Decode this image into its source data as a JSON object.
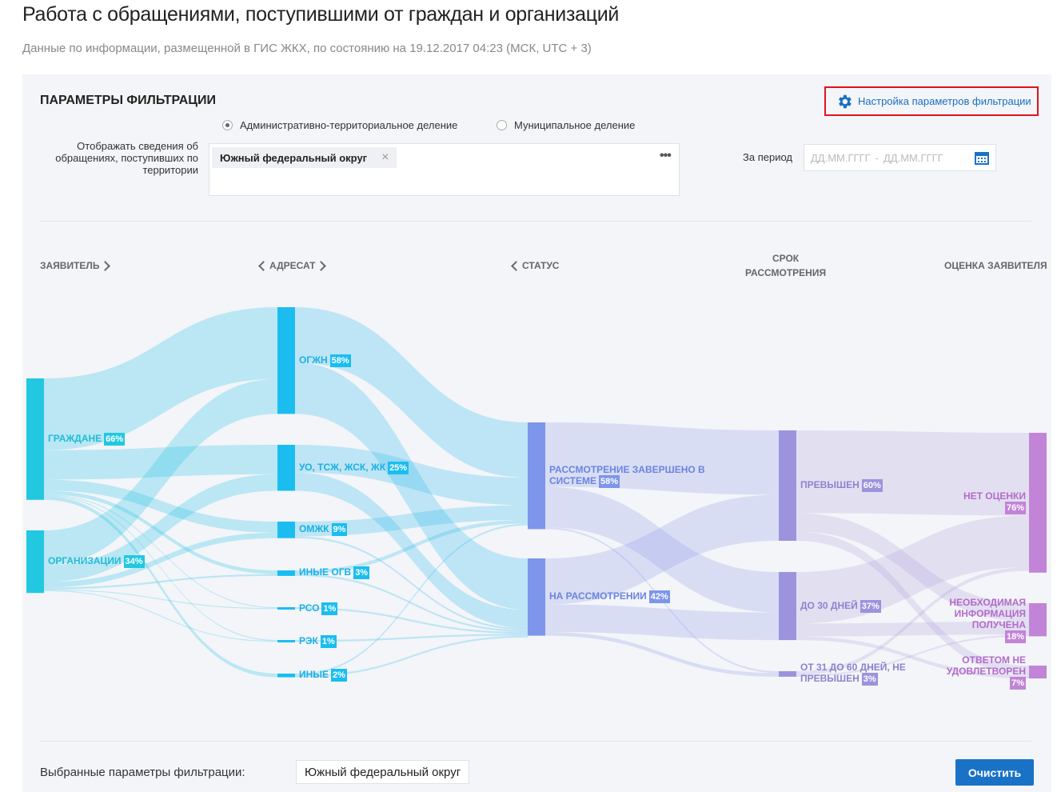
{
  "header": {
    "title": "Работа с обращениями, поступившими от граждан и организаций",
    "subtitle": "Данные по информации, размещенной в ГИС ЖКХ, по состоянию на 19.12.2017 04:23 (МСК, UTC + 3)"
  },
  "filters": {
    "title": "ПАРАМЕТРЫ ФИЛЬТРАЦИИ",
    "settings_link": "Настройка параметров фильтрации",
    "radio_options": [
      "Административно-территориальное деление",
      "Муниципальное деление"
    ],
    "territory_label": "Отображать сведения об обращениях, поступивших по территории",
    "territory_tag": "Южный федеральный округ",
    "period_label": "За период",
    "date_from": "ДД.ММ.ГГГГ",
    "date_separator": "-",
    "date_to": "ДД.ММ.ГГГГ"
  },
  "chart_data": {
    "type": "sankey",
    "columns": [
      {
        "title": "ЗАЯВИТЕЛЬ",
        "color": "#22c8e0",
        "text_color": "#1fbcd8",
        "link_color": "rgba(40,195,230,0.28)",
        "nodes": [
          {
            "label": "ГРАЖДАНЕ",
            "value": 66,
            "value_label": "66%"
          },
          {
            "label": "ОРГАНИЗАЦИИ",
            "value": 34,
            "value_label": "34%"
          }
        ]
      },
      {
        "title": "АДРЕСАТ",
        "color": "#1bbdf0",
        "text_color": "#18b0e6",
        "link_color": "rgba(40,185,235,0.26)",
        "nodes": [
          {
            "label": "ОГЖН",
            "value": 58,
            "value_label": "58%"
          },
          {
            "label": "УО, ТСЖ, ЖСК, ЖК",
            "value": 25,
            "value_label": "25%"
          },
          {
            "label": "ОМЖК",
            "value": 9,
            "value_label": "9%"
          },
          {
            "label": "ИНЫЕ ОГВ",
            "value": 3,
            "value_label": "3%"
          },
          {
            "label": "РСО",
            "value": 1,
            "value_label": "1%"
          },
          {
            "label": "РЭК",
            "value": 1,
            "value_label": "1%"
          },
          {
            "label": "ИНЫЕ",
            "value": 2,
            "value_label": "2%"
          }
        ]
      },
      {
        "title": "СТАТУС",
        "color": "#7d95ea",
        "text_color": "#6a84de",
        "link_color": "rgba(140,150,230,0.25)",
        "nodes": [
          {
            "label": "РАССМОТРЕНИЕ ЗАВЕРШЕНО В СИСТЕМЕ",
            "value": 58,
            "value_label": "58%"
          },
          {
            "label": "НА РАССМОТРЕНИИ",
            "value": 42,
            "value_label": "42%"
          }
        ]
      },
      {
        "title": "СРОК РАССМОТРЕНИЯ",
        "color": "#9d93dc",
        "text_color": "#8d83cf",
        "link_color": "rgba(175,160,220,0.25)",
        "nodes": [
          {
            "label": "ПРЕВЫШЕН",
            "value": 60,
            "value_label": "60%"
          },
          {
            "label": "ДО 30 ДНЕЙ",
            "value": 37,
            "value_label": "37%"
          },
          {
            "label": "ОТ 31 ДО 60 ДНЕЙ, НЕ ПРЕВЫШЕН",
            "value": 3,
            "value_label": "3%"
          }
        ]
      },
      {
        "title": "ОЦЕНКА ЗАЯВИТЕЛЯ",
        "color": "#c284d6",
        "text_color": "#b36bc9",
        "nodes": [
          {
            "label": "НЕТ ОЦЕНКИ",
            "value": 76,
            "value_label": "76%"
          },
          {
            "label": "НЕОБХОДИМАЯ ИНФОРМАЦИЯ ПОЛУЧЕНА",
            "value": 18,
            "value_label": "18%"
          },
          {
            "label": "ОТВЕТОМ НЕ УДОВЛЕТВОРЕН",
            "value": 7,
            "value_label": "7%"
          }
        ]
      }
    ],
    "links": [
      {
        "source": "ГРАЖДАНЕ",
        "target": "ОГЖН",
        "value": 39
      },
      {
        "source": "ГРАЖДАНЕ",
        "target": "УО, ТСЖ, ЖСК, ЖК",
        "value": 16
      },
      {
        "source": "ГРАЖДАНЕ",
        "target": "ОМЖК",
        "value": 6
      },
      {
        "source": "ГРАЖДАНЕ",
        "target": "ИНЫЕ ОГВ",
        "value": 2
      },
      {
        "source": "ГРАЖДАНЕ",
        "target": "РСО",
        "value": 0.5
      },
      {
        "source": "ГРАЖДАНЕ",
        "target": "РЭК",
        "value": 0.5
      },
      {
        "source": "ГРАЖДАНЕ",
        "target": "ИНЫЕ",
        "value": 2
      },
      {
        "source": "ОРГАНИЗАЦИИ",
        "target": "ОГЖН",
        "value": 19
      },
      {
        "source": "ОРГАНИЗАЦИИ",
        "target": "УО, ТСЖ, ЖСК, ЖК",
        "value": 9
      },
      {
        "source": "ОРГАНИЗАЦИИ",
        "target": "ОМЖК",
        "value": 3
      },
      {
        "source": "ОРГАНИЗАЦИИ",
        "target": "ИНЫЕ ОГВ",
        "value": 1
      },
      {
        "source": "ОРГАНИЗАЦИИ",
        "target": "РСО",
        "value": 0.5
      },
      {
        "source": "ОРГАНИЗАЦИИ",
        "target": "РЭК",
        "value": 0.5
      },
      {
        "source": "ОГЖН",
        "target": "РАССМОТРЕНИЕ ЗАВЕРШЕНО В СИСТЕМЕ",
        "value": 30
      },
      {
        "source": "ОГЖН",
        "target": "НА РАССМОТРЕНИИ",
        "value": 28
      },
      {
        "source": "УО, ТСЖ, ЖСК, ЖК",
        "target": "РАССМОТРЕНИЕ ЗАВЕРШЕНО В СИСТЕМЕ",
        "value": 15
      },
      {
        "source": "УО, ТСЖ, ЖСК, ЖК",
        "target": "НА РАССМОТРЕНИИ",
        "value": 10
      },
      {
        "source": "ОМЖК",
        "target": "РАССМОТРЕНИЕ ЗАВЕРШЕНО В СИСТЕМЕ",
        "value": 8
      },
      {
        "source": "ОМЖК",
        "target": "НА РАССМОТРЕНИИ",
        "value": 1
      },
      {
        "source": "ИНЫЕ ОГВ",
        "target": "РАССМОТРЕНИЕ ЗАВЕРШЕНО В СИСТЕМЕ",
        "value": 2
      },
      {
        "source": "ИНЫЕ ОГВ",
        "target": "НА РАССМОТРЕНИИ",
        "value": 1
      },
      {
        "source": "РСО",
        "target": "НА РАССМОТРЕНИИ",
        "value": 1
      },
      {
        "source": "РЭК",
        "target": "НА РАССМОТРЕНИИ",
        "value": 1
      },
      {
        "source": "ИНЫЕ",
        "target": "РАССМОТРЕНИЕ ЗАВЕРШЕНО В СИСТЕМЕ",
        "value": 1
      },
      {
        "source": "ИНЫЕ",
        "target": "НА РАССМОТРЕНИИ",
        "value": 1
      },
      {
        "source": "РАССМОТРЕНИЕ ЗАВЕРШЕНО В СИСТЕМЕ",
        "target": "ПРЕВЫШЕН",
        "value": 35
      },
      {
        "source": "РАССМОТРЕНИЕ ЗАВЕРШЕНО В СИСТЕМЕ",
        "target": "ДО 30 ДНЕЙ",
        "value": 22
      },
      {
        "source": "РАССМОТРЕНИЕ ЗАВЕРШЕНО В СИСТЕМЕ",
        "target": "ОТ 31 ДО 60 ДНЕЙ, НЕ ПРЕВЫШЕН",
        "value": 1
      },
      {
        "source": "НА РАССМОТРЕНИИ",
        "target": "ПРЕВЫШЕН",
        "value": 25
      },
      {
        "source": "НА РАССМОТРЕНИИ",
        "target": "ДО 30 ДНЕЙ",
        "value": 15
      },
      {
        "source": "НА РАССМОТРЕНИИ",
        "target": "ОТ 31 ДО 60 ДНЕЙ, НЕ ПРЕВЫШЕН",
        "value": 2
      },
      {
        "source": "ПРЕВЫШЕН",
        "target": "НЕТ ОЦЕНКИ",
        "value": 45
      },
      {
        "source": "ПРЕВЫШЕН",
        "target": "НЕОБХОДИМАЯ ИНФОРМАЦИЯ ПОЛУЧЕНА",
        "value": 10
      },
      {
        "source": "ПРЕВЫШЕН",
        "target": "ОТВЕТОМ НЕ УДОВЛЕТВОРЕН",
        "value": 5
      },
      {
        "source": "ДО 30 ДНЕЙ",
        "target": "НЕТ ОЦЕНКИ",
        "value": 28
      },
      {
        "source": "ДО 30 ДНЕЙ",
        "target": "НЕОБХОДИМАЯ ИНФОРМАЦИЯ ПОЛУЧЕНА",
        "value": 7
      },
      {
        "source": "ДО 30 ДНЕЙ",
        "target": "ОТВЕТОМ НЕ УДОВЛЕТВОРЕН",
        "value": 2
      },
      {
        "source": "ОТ 31 ДО 60 ДНЕЙ, НЕ ПРЕВЫШЕН",
        "target": "НЕТ ОЦЕНКИ",
        "value": 2
      },
      {
        "source": "ОТ 31 ДО 60 ДНЕЙ, НЕ ПРЕВЫШЕН",
        "target": "НЕОБХОДИМАЯ ИНФОРМАЦИЯ ПОЛУЧЕНА",
        "value": 1
      }
    ]
  },
  "footer": {
    "selected_label": "Выбранные параметры фильтрации:",
    "selected_tag": "Южный федеральный округ",
    "clear_button": "Очистить"
  }
}
